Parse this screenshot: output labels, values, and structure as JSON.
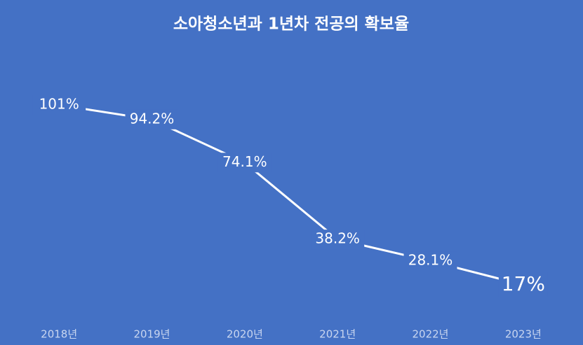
{
  "chart_data": {
    "type": "line",
    "title": "소아청소년과 1년차 전공의 확보율",
    "categories": [
      "2018년",
      "2019년",
      "2020년",
      "2021년",
      "2022년",
      "2023년"
    ],
    "values": [
      101,
      94.2,
      74.1,
      38.2,
      28.1,
      17
    ],
    "value_labels": [
      "101%",
      "94.2%",
      "74.1%",
      "38.2%",
      "28.1%",
      "17%"
    ],
    "color": "#ffffff",
    "background": "#4471c5"
  }
}
